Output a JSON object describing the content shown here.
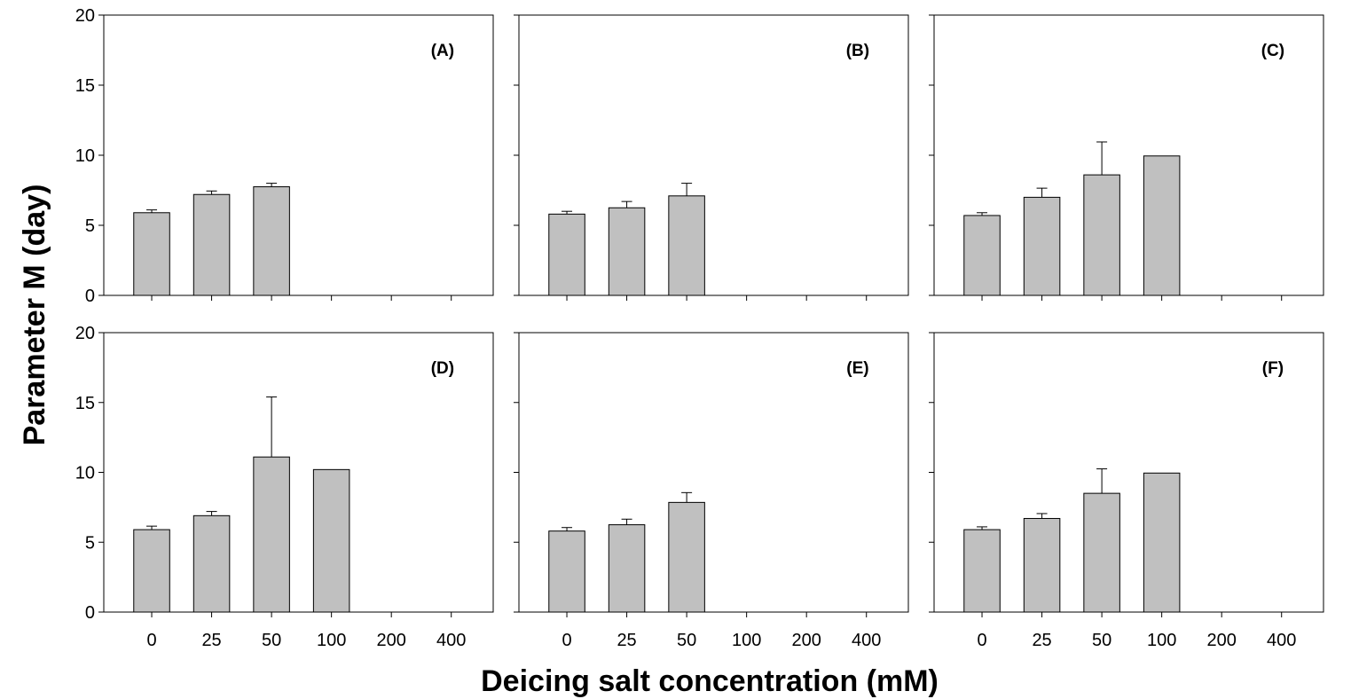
{
  "chart_data": {
    "type": "bar",
    "ylabel": "Parameter M (day)",
    "xlabel": "Deicing salt concentration (mM)",
    "categories": [
      "0",
      "25",
      "50",
      "100",
      "200",
      "400"
    ],
    "ylim": [
      0,
      20
    ],
    "yticks": [
      "0",
      "5",
      "10",
      "15",
      "20"
    ],
    "grid": false,
    "bar_color": "#c0c0c0",
    "panels": [
      {
        "label": "(A)",
        "values": [
          5.9,
          7.2,
          7.75,
          null,
          null,
          null
        ],
        "errors": [
          0.2,
          0.25,
          0.25,
          null,
          null,
          null
        ]
      },
      {
        "label": "(B)",
        "values": [
          5.8,
          6.25,
          7.1,
          null,
          null,
          null
        ],
        "errors": [
          0.2,
          0.45,
          0.9,
          null,
          null,
          null
        ]
      },
      {
        "label": "(C)",
        "values": [
          5.7,
          7.0,
          8.6,
          9.95,
          null,
          null
        ],
        "errors": [
          0.2,
          0.65,
          2.35,
          0,
          null,
          null
        ]
      },
      {
        "label": "(D)",
        "values": [
          5.9,
          6.9,
          11.1,
          10.2,
          null,
          null
        ],
        "errors": [
          0.25,
          0.3,
          4.3,
          0,
          null,
          null
        ]
      },
      {
        "label": "(E)",
        "values": [
          5.8,
          6.25,
          7.85,
          null,
          null,
          null
        ],
        "errors": [
          0.25,
          0.4,
          0.7,
          null,
          null,
          null
        ]
      },
      {
        "label": "(F)",
        "values": [
          5.9,
          6.7,
          8.5,
          9.95,
          null,
          null
        ],
        "errors": [
          0.2,
          0.35,
          1.75,
          0,
          null,
          null
        ]
      }
    ]
  }
}
